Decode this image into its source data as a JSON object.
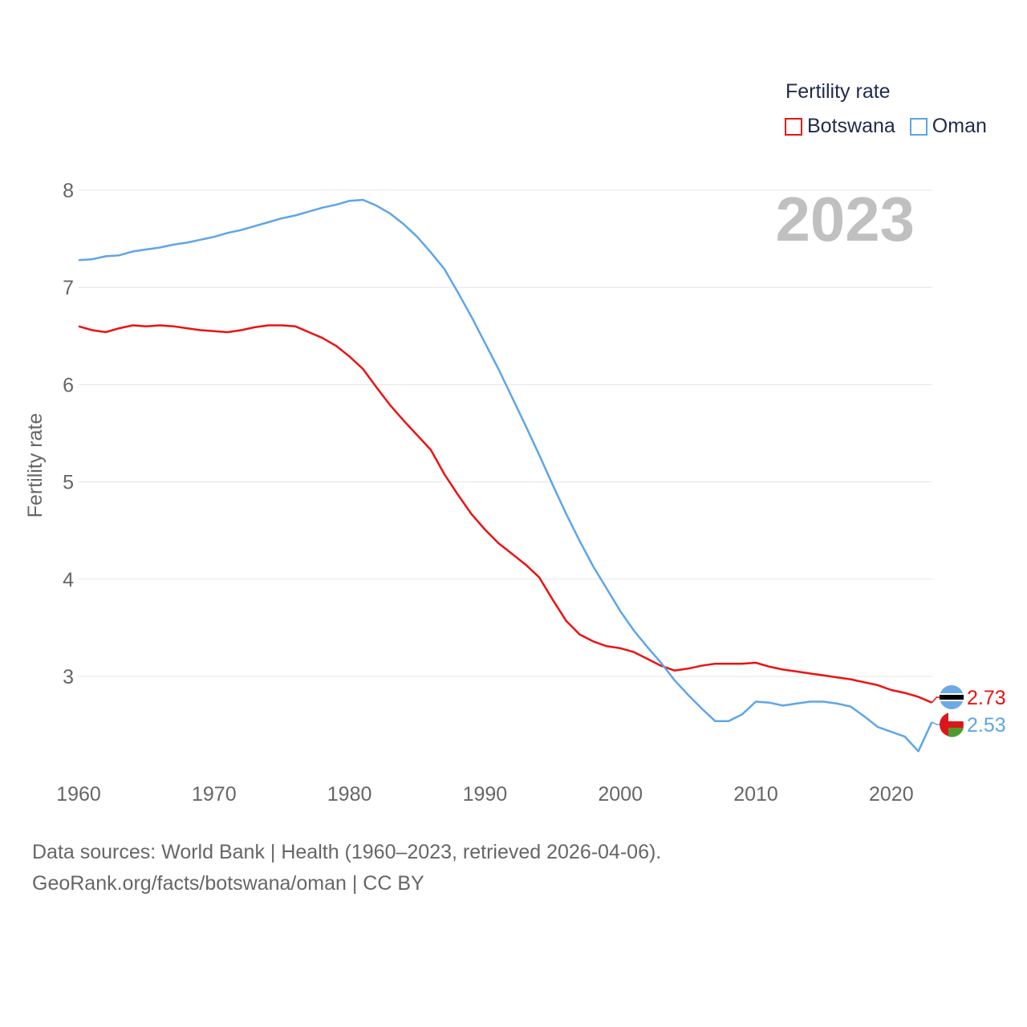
{
  "legend": {
    "title": "Fertility rate",
    "items": [
      {
        "label": "Botswana",
        "color": "#ee1111"
      },
      {
        "label": "Oman",
        "color": "#5ea5e9"
      }
    ]
  },
  "year_badge": "2023",
  "footer": {
    "line1": "Data sources: World Bank | Health (1960–2023, retrieved 2026-04-06).",
    "line2": "GeoRank.org/facts/botswana/oman | CC BY"
  },
  "chart_data": {
    "type": "line",
    "title": "Fertility rate",
    "xlabel": "",
    "ylabel": "Fertility rate",
    "xlim": [
      1960,
      2023
    ],
    "ylim": [
      2.2,
      8.2
    ],
    "xticks": [
      1960,
      1970,
      1980,
      1990,
      2000,
      2010,
      2020
    ],
    "yticks": [
      3,
      4,
      5,
      6,
      7,
      8
    ],
    "grid": true,
    "x": [
      1960,
      1961,
      1962,
      1963,
      1964,
      1965,
      1966,
      1967,
      1968,
      1969,
      1970,
      1971,
      1972,
      1973,
      1974,
      1975,
      1976,
      1977,
      1978,
      1979,
      1980,
      1981,
      1982,
      1983,
      1984,
      1985,
      1986,
      1987,
      1988,
      1989,
      1990,
      1991,
      1992,
      1993,
      1994,
      1995,
      1996,
      1997,
      1998,
      1999,
      2000,
      2001,
      2002,
      2003,
      2004,
      2005,
      2006,
      2007,
      2008,
      2009,
      2010,
      2011,
      2012,
      2013,
      2014,
      2015,
      2016,
      2017,
      2018,
      2019,
      2020,
      2021,
      2022,
      2023
    ],
    "series": [
      {
        "name": "Botswana",
        "color": "#ee1111",
        "end_label": "2.73",
        "values": [
          6.6,
          6.56,
          6.54,
          6.58,
          6.61,
          6.6,
          6.61,
          6.6,
          6.58,
          6.56,
          6.55,
          6.54,
          6.56,
          6.59,
          6.61,
          6.61,
          6.6,
          6.54,
          6.48,
          6.4,
          6.29,
          6.16,
          5.97,
          5.79,
          5.63,
          5.48,
          5.33,
          5.08,
          4.87,
          4.67,
          4.51,
          4.37,
          4.26,
          4.15,
          4.02,
          3.79,
          3.57,
          3.43,
          3.36,
          3.31,
          3.29,
          3.25,
          3.18,
          3.11,
          3.06,
          3.08,
          3.11,
          3.13,
          3.13,
          3.13,
          3.14,
          3.1,
          3.07,
          3.05,
          3.03,
          3.01,
          2.99,
          2.97,
          2.94,
          2.91,
          2.86,
          2.83,
          2.79,
          2.73
        ]
      },
      {
        "name": "Oman",
        "color": "#5ea5e9",
        "end_label": "2.53",
        "values": [
          7.28,
          7.29,
          7.32,
          7.33,
          7.37,
          7.39,
          7.41,
          7.44,
          7.46,
          7.49,
          7.52,
          7.56,
          7.59,
          7.63,
          7.67,
          7.71,
          7.74,
          7.78,
          7.82,
          7.85,
          7.89,
          7.9,
          7.84,
          7.76,
          7.65,
          7.52,
          7.36,
          7.19,
          6.95,
          6.7,
          6.43,
          6.16,
          5.87,
          5.58,
          5.28,
          4.97,
          4.67,
          4.39,
          4.13,
          3.9,
          3.67,
          3.47,
          3.3,
          3.14,
          2.96,
          2.81,
          2.67,
          2.54,
          2.54,
          2.61,
          2.74,
          2.73,
          2.7,
          2.72,
          2.74,
          2.74,
          2.72,
          2.69,
          2.59,
          2.48,
          2.43,
          2.38,
          2.23,
          2.53
        ]
      }
    ]
  }
}
